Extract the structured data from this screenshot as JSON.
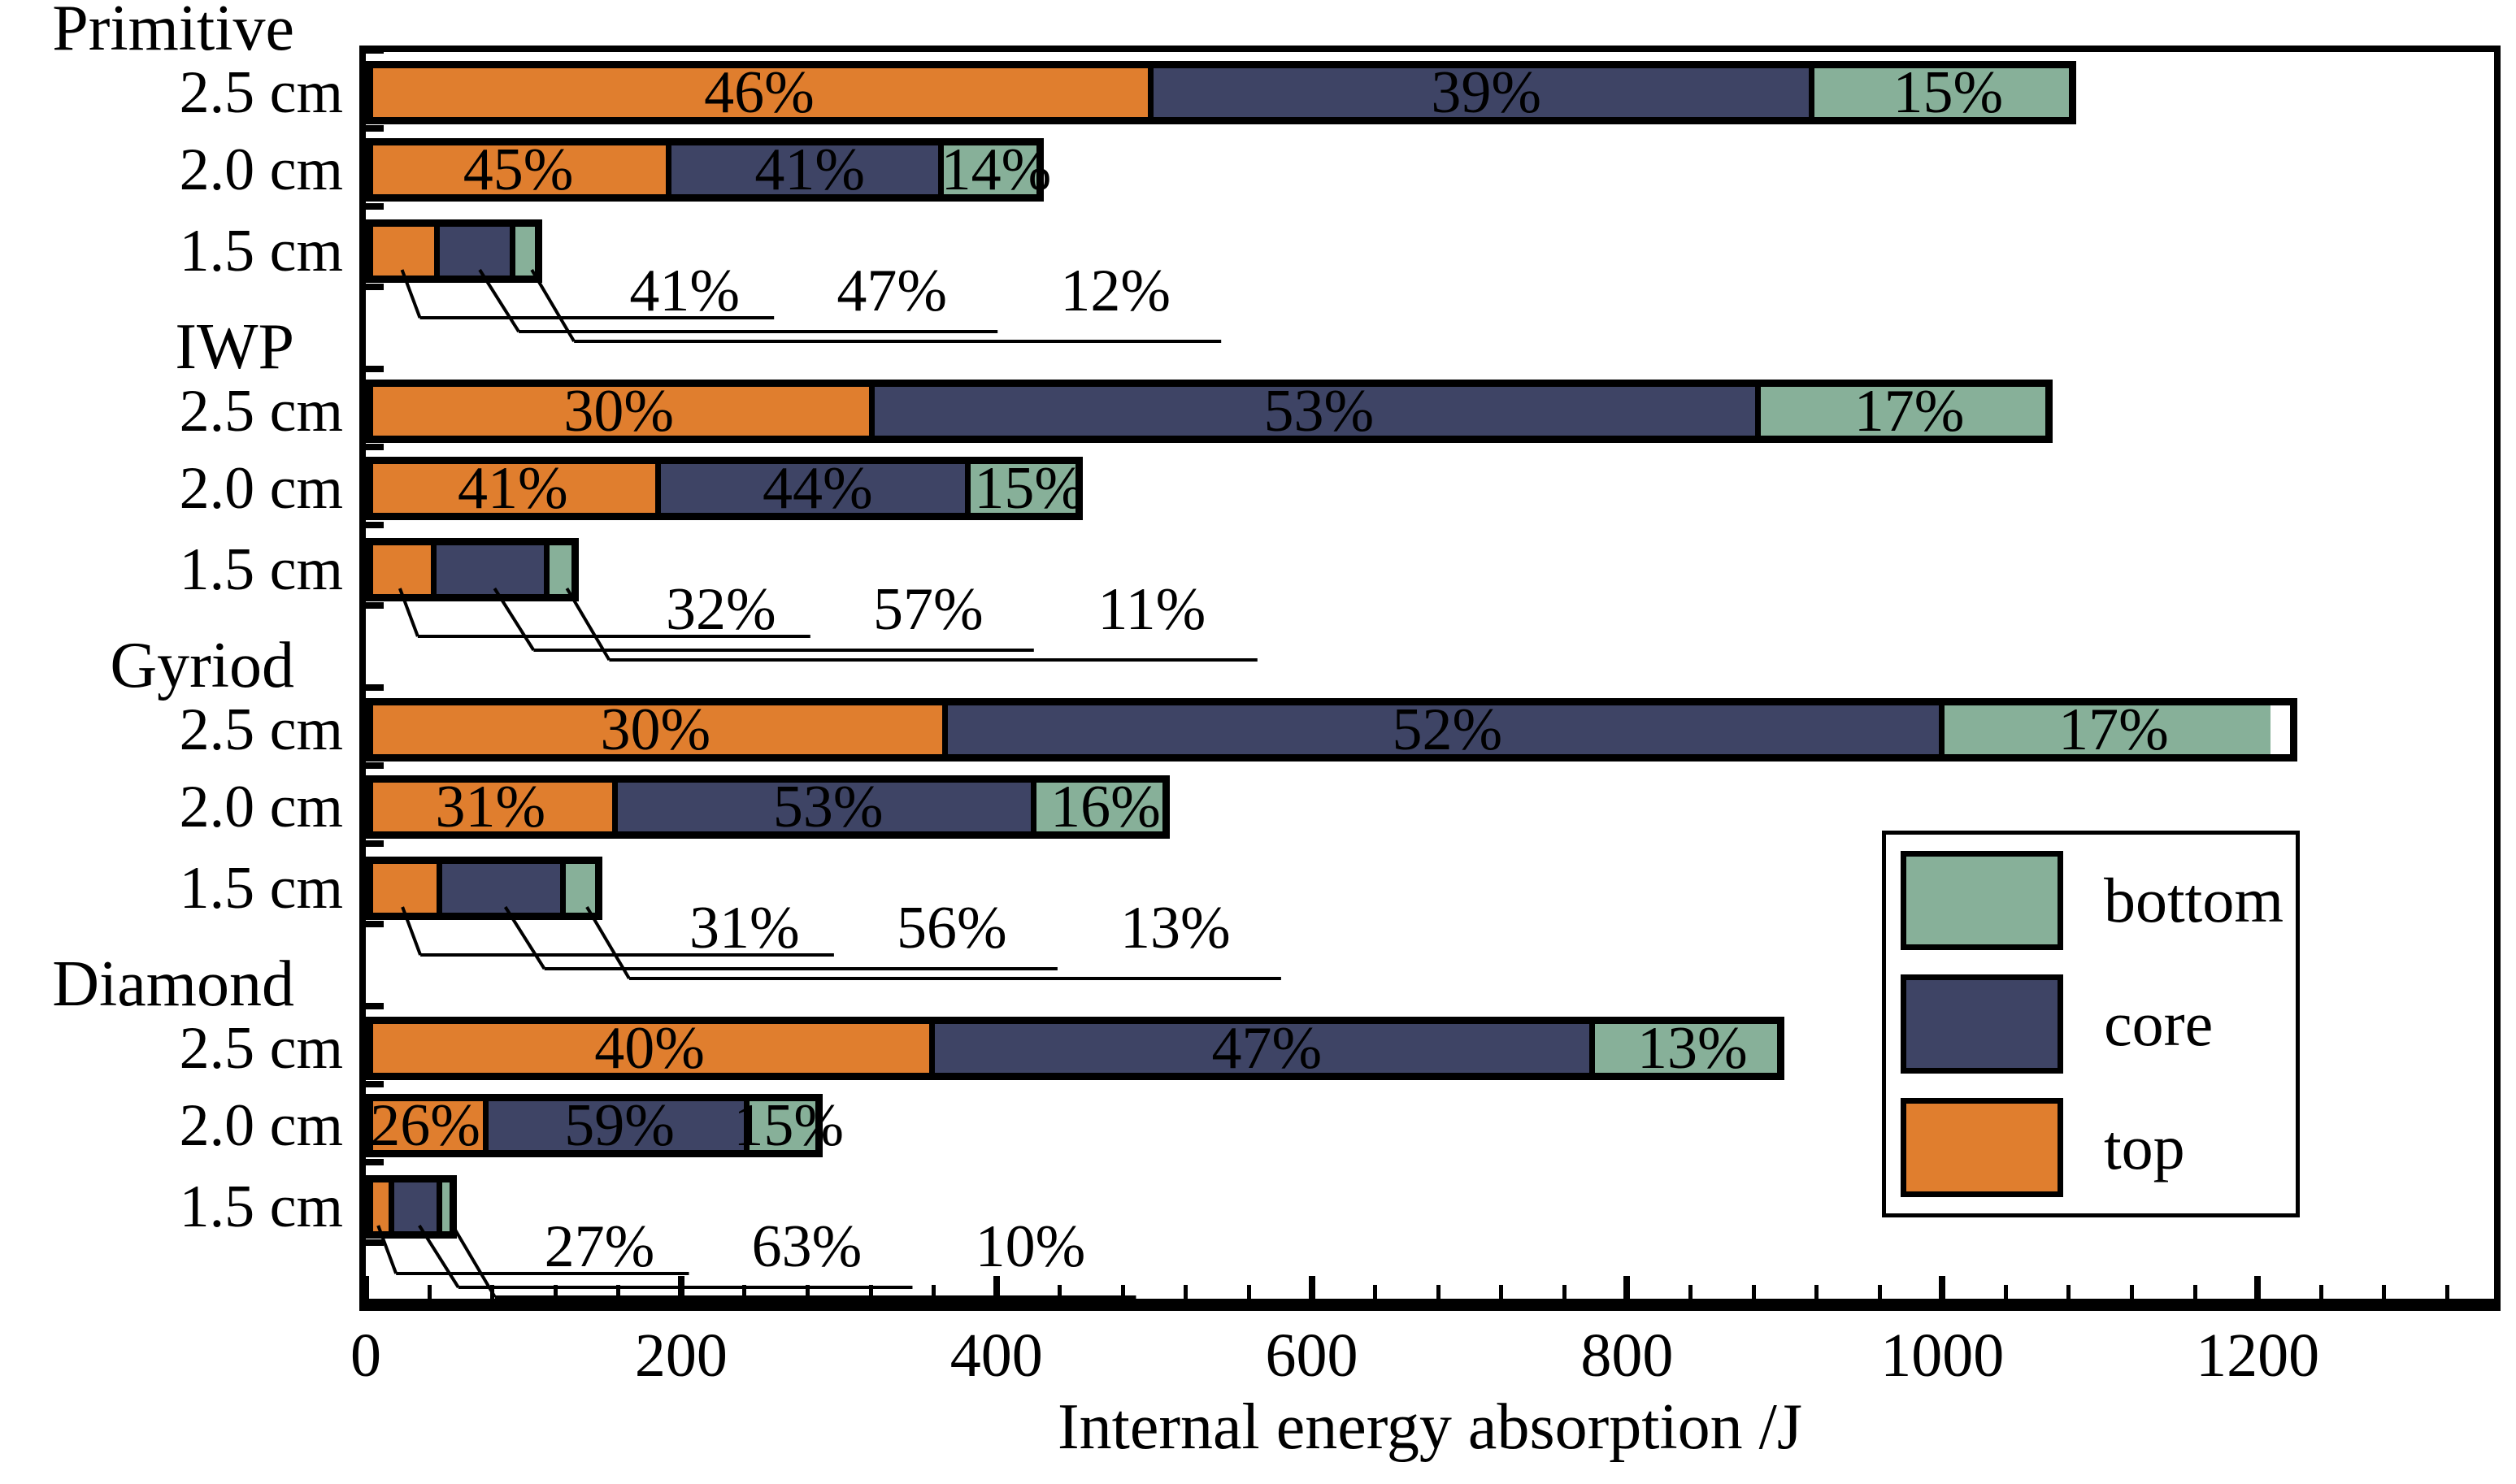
{
  "colors": {
    "bar_top": "#E07E2E",
    "bar_core": "#3E4465",
    "bar_bottom": "#87B099",
    "axis": "#000000",
    "text": "#000000",
    "background": "#FFFFFF"
  },
  "legend": {
    "entries": [
      {
        "label": "bottom",
        "series": "bottom",
        "color": "#87B099"
      },
      {
        "label": "core",
        "series": "core",
        "color": "#3E4465"
      },
      {
        "label": "top",
        "series": "top",
        "color": "#E07E2E"
      }
    ]
  },
  "chart_data": {
    "type": "bar",
    "orientation": "horizontal",
    "stacked": true,
    "title": "",
    "xlabel": "Internal energy absorption /J",
    "ylabel": "",
    "units": "J",
    "xlim": [
      0,
      1350
    ],
    "x_major_ticks": [
      0,
      200,
      400,
      600,
      800,
      1000,
      1200
    ],
    "x_minor_tick_step": 40,
    "grid": false,
    "legend_position": "middle-right",
    "stack_order": [
      "top",
      "core",
      "bottom"
    ],
    "groups": [
      {
        "name": "Primitive",
        "rows": [
          {
            "size": "2.5 cm",
            "total_J": 1085,
            "pct": {
              "top": 46,
              "core": 39,
              "bottom": 15
            },
            "labels_placement": "inside"
          },
          {
            "size": "2.0 cm",
            "total_J": 430,
            "pct": {
              "top": 45,
              "core": 41,
              "bottom": 14
            },
            "labels_placement": "inside"
          },
          {
            "size": "1.5 cm",
            "total_J": 112,
            "pct": {
              "top": 41,
              "core": 47,
              "bottom": 12
            },
            "labels_placement": "callout"
          }
        ]
      },
      {
        "name": "IWP",
        "rows": [
          {
            "size": "2.5 cm",
            "total_J": 1070,
            "pct": {
              "top": 30,
              "core": 53,
              "bottom": 17
            },
            "labels_placement": "inside"
          },
          {
            "size": "2.0 cm",
            "total_J": 455,
            "pct": {
              "top": 41,
              "core": 44,
              "bottom": 15
            },
            "labels_placement": "inside"
          },
          {
            "size": "1.5 cm",
            "total_J": 135,
            "pct": {
              "top": 32,
              "core": 57,
              "bottom": 11
            },
            "labels_placement": "callout"
          }
        ]
      },
      {
        "name": "Gyriod",
        "rows": [
          {
            "size": "2.5 cm",
            "total_J": 1225,
            "pct": {
              "top": 30,
              "core": 52,
              "bottom": 17
            },
            "labels_placement": "inside"
          },
          {
            "size": "2.0 cm",
            "total_J": 510,
            "pct": {
              "top": 31,
              "core": 53,
              "bottom": 16
            },
            "labels_placement": "inside"
          },
          {
            "size": "1.5 cm",
            "total_J": 150,
            "pct": {
              "top": 31,
              "core": 56,
              "bottom": 13
            },
            "labels_placement": "callout"
          }
        ]
      },
      {
        "name": "Diamond",
        "rows": [
          {
            "size": "2.5 cm",
            "total_J": 900,
            "pct": {
              "top": 40,
              "core": 47,
              "bottom": 13
            },
            "labels_placement": "inside"
          },
          {
            "size": "2.0 cm",
            "total_J": 290,
            "pct": {
              "top": 26,
              "core": 59,
              "bottom": 15
            },
            "labels_placement": "inside"
          },
          {
            "size": "1.5 cm",
            "total_J": 58,
            "pct": {
              "top": 27,
              "core": 63,
              "bottom": 10
            },
            "labels_placement": "callout"
          }
        ]
      }
    ]
  }
}
